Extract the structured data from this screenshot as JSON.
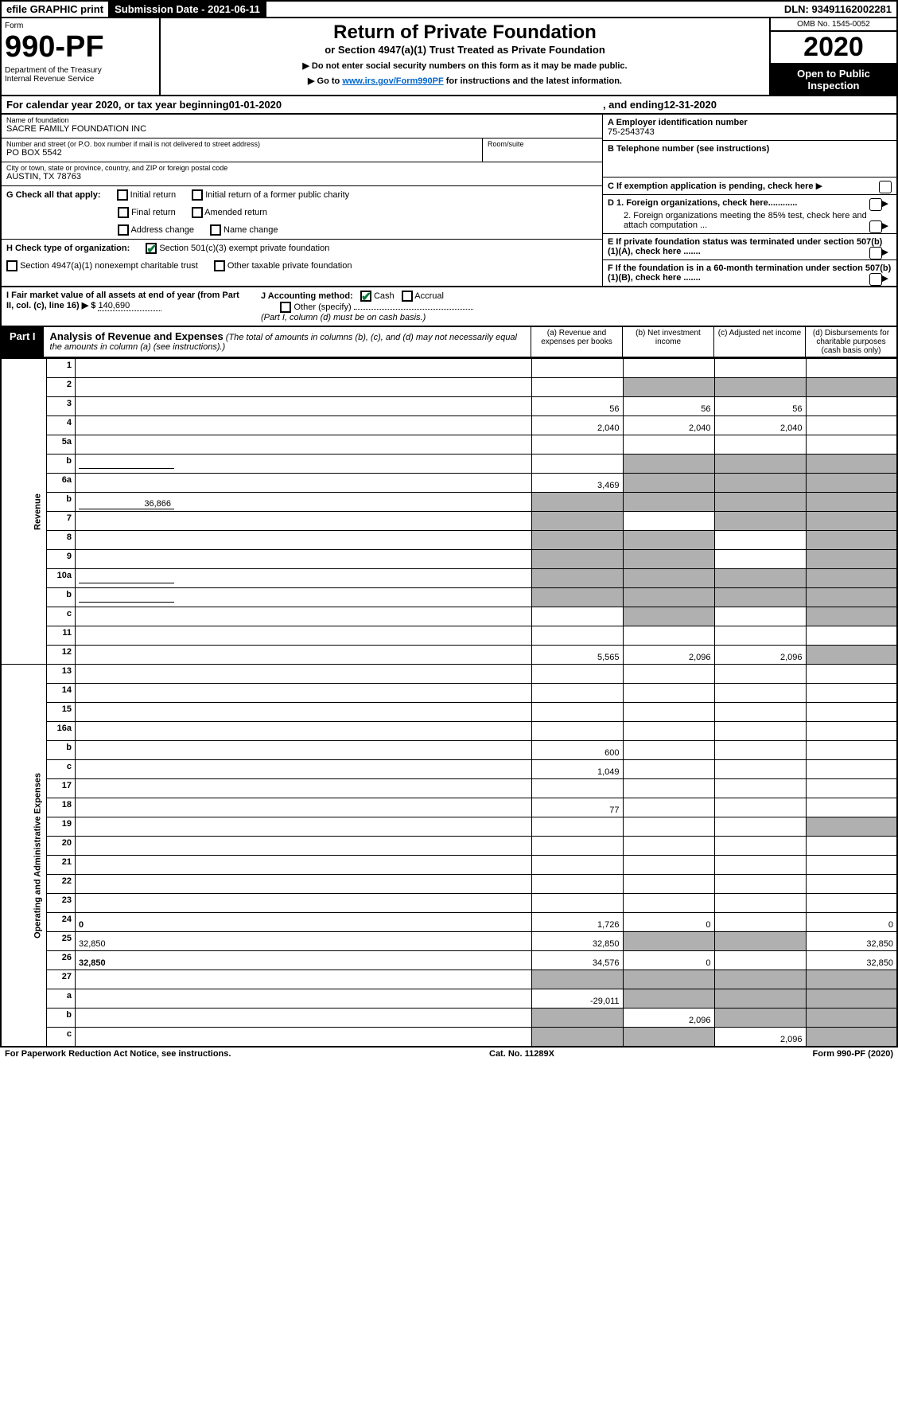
{
  "top": {
    "efile": "efile GRAPHIC print",
    "sub_date_label": "Submission Date - 2021-06-11",
    "dln": "DLN: 93491162002281"
  },
  "header": {
    "form_label": "Form",
    "form_num": "990-PF",
    "dept": "Department of the Treasury\nInternal Revenue Service",
    "title": "Return of Private Foundation",
    "subtitle": "or Section 4947(a)(1) Trust Treated as Private Foundation",
    "note1": "▶ Do not enter social security numbers on this form as it may be made public.",
    "note2_pre": "▶ Go to ",
    "note2_link": "www.irs.gov/Form990PF",
    "note2_post": " for instructions and the latest information.",
    "omb": "OMB No. 1545-0052",
    "year": "2020",
    "open": "Open to Public Inspection"
  },
  "cal": {
    "pre": "For calendar year 2020, or tax year beginning ",
    "begin": "01-01-2020",
    "mid": ", and ending ",
    "end": "12-31-2020"
  },
  "info": {
    "name_lbl": "Name of foundation",
    "name": "SACRE FAMILY FOUNDATION INC",
    "street_lbl": "Number and street (or P.O. box number if mail is not delivered to street address)",
    "street": "PO BOX 5542",
    "room_lbl": "Room/suite",
    "city_lbl": "City or town, state or province, country, and ZIP or foreign postal code",
    "city": "AUSTIN, TX  78763",
    "A_lbl": "A Employer identification number",
    "A": "75-2543743",
    "B_lbl": "B Telephone number (see instructions)",
    "C": "C If exemption application is pending, check here",
    "D1": "D 1. Foreign organizations, check here............",
    "D2": "2. Foreign organizations meeting the 85% test, check here and attach computation ...",
    "E": "E If private foundation status was terminated under section 507(b)(1)(A), check here .......",
    "F": "F If the foundation is in a 60-month termination under section 507(b)(1)(B), check here .......",
    "G_lbl": "G Check all that apply:",
    "G_opts": [
      "Initial return",
      "Initial return of a former public charity",
      "Final return",
      "Amended return",
      "Address change",
      "Name change"
    ],
    "H_lbl": "H Check type of organization:",
    "H1": "Section 501(c)(3) exempt private foundation",
    "H2": "Section 4947(a)(1) nonexempt charitable trust",
    "H3": "Other taxable private foundation",
    "I_lbl": "I Fair market value of all assets at end of year (from Part II, col. (c), line 16) ▶ $",
    "I_val": "140,690",
    "J_lbl": "J Accounting method:",
    "J_cash": "Cash",
    "J_accrual": "Accrual",
    "J_other": "Other (specify)",
    "J_note": "(Part I, column (d) must be on cash basis.)"
  },
  "part1": {
    "label": "Part I",
    "title": "Analysis of Revenue and Expenses",
    "desc": "(The total of amounts in columns (b), (c), and (d) may not necessarily equal the amounts in column (a) (see instructions).)",
    "col_a": "(a) Revenue and expenses per books",
    "col_b": "(b) Net investment income",
    "col_c": "(c) Adjusted net income",
    "col_d": "(d) Disbursements for charitable purposes (cash basis only)"
  },
  "sections": {
    "revenue": "Revenue",
    "expenses": "Operating and Administrative Expenses"
  },
  "rows": [
    {
      "n": "1",
      "d": "",
      "a": "",
      "b": "",
      "c": ""
    },
    {
      "n": "2",
      "d": "",
      "dots": true,
      "a": "",
      "b": "",
      "c": "",
      "b_shade": true,
      "c_shade": true,
      "d_shade": true
    },
    {
      "n": "3",
      "d": "",
      "a": "56",
      "b": "56",
      "c": "56"
    },
    {
      "n": "4",
      "d": "",
      "dots": true,
      "a": "2,040",
      "b": "2,040",
      "c": "2,040"
    },
    {
      "n": "5a",
      "d": "",
      "dots": true,
      "a": "",
      "b": "",
      "c": ""
    },
    {
      "n": "b",
      "d": "",
      "inline": "",
      "a": "",
      "b": "",
      "c": "",
      "b_shade": true,
      "c_shade": true,
      "d_shade": true
    },
    {
      "n": "6a",
      "d": "",
      "a": "3,469",
      "b": "",
      "c": "",
      "b_shade": true,
      "c_shade": true,
      "d_shade": true
    },
    {
      "n": "b",
      "d": "",
      "inline": "36,866",
      "a": "",
      "b": "",
      "c": "",
      "a_shade": true,
      "b_shade": true,
      "c_shade": true,
      "d_shade": true
    },
    {
      "n": "7",
      "d": "",
      "dots": true,
      "a": "",
      "b": "",
      "c": "",
      "a_shade": true,
      "c_shade": true,
      "d_shade": true
    },
    {
      "n": "8",
      "d": "",
      "dots": true,
      "a": "",
      "b": "",
      "c": "",
      "a_shade": true,
      "b_shade": true,
      "d_shade": true
    },
    {
      "n": "9",
      "d": "",
      "dots": true,
      "a": "",
      "b": "",
      "c": "",
      "a_shade": true,
      "b_shade": true,
      "d_shade": true
    },
    {
      "n": "10a",
      "d": "",
      "inline": "",
      "a": "",
      "b": "",
      "c": "",
      "a_shade": true,
      "b_shade": true,
      "c_shade": true,
      "d_shade": true
    },
    {
      "n": "b",
      "d": "",
      "dots": true,
      "inline": "",
      "a": "",
      "b": "",
      "c": "",
      "a_shade": true,
      "b_shade": true,
      "c_shade": true,
      "d_shade": true
    },
    {
      "n": "c",
      "d": "",
      "dots": true,
      "a": "",
      "b": "",
      "c": "",
      "b_shade": true,
      "d_shade": true
    },
    {
      "n": "11",
      "d": "",
      "dots": true,
      "a": "",
      "b": "",
      "c": ""
    },
    {
      "n": "12",
      "d": "",
      "dots": true,
      "bold": true,
      "a": "5,565",
      "b": "2,096",
      "c": "2,096",
      "d_shade": true
    }
  ],
  "exp_rows": [
    {
      "n": "13",
      "d": "",
      "a": "",
      "b": "",
      "c": ""
    },
    {
      "n": "14",
      "d": "",
      "dots": true,
      "a": "",
      "b": "",
      "c": ""
    },
    {
      "n": "15",
      "d": "",
      "dots": true,
      "a": "",
      "b": "",
      "c": ""
    },
    {
      "n": "16a",
      "d": "",
      "dots": true,
      "a": "",
      "b": "",
      "c": ""
    },
    {
      "n": "b",
      "d": "",
      "dots": true,
      "a": "600",
      "b": "",
      "c": ""
    },
    {
      "n": "c",
      "d": "",
      "dots": true,
      "a": "1,049",
      "b": "",
      "c": ""
    },
    {
      "n": "17",
      "d": "",
      "dots": true,
      "a": "",
      "b": "",
      "c": ""
    },
    {
      "n": "18",
      "d": "",
      "dots": true,
      "a": "77",
      "b": "",
      "c": ""
    },
    {
      "n": "19",
      "d": "",
      "dots": true,
      "a": "",
      "b": "",
      "c": "",
      "d_shade": true
    },
    {
      "n": "20",
      "d": "",
      "dots": true,
      "a": "",
      "b": "",
      "c": ""
    },
    {
      "n": "21",
      "d": "",
      "dots": true,
      "a": "",
      "b": "",
      "c": ""
    },
    {
      "n": "22",
      "d": "",
      "dots": true,
      "a": "",
      "b": "",
      "c": ""
    },
    {
      "n": "23",
      "d": "",
      "dots": true,
      "a": "",
      "b": "",
      "c": ""
    },
    {
      "n": "24",
      "d": "0",
      "dots": true,
      "bold": true,
      "a": "1,726",
      "b": "0",
      "c": ""
    },
    {
      "n": "25",
      "d": "32,850",
      "dots": true,
      "a": "32,850",
      "b": "",
      "c": "",
      "b_shade": true,
      "c_shade": true
    },
    {
      "n": "26",
      "d": "32,850",
      "bold": true,
      "a": "34,576",
      "b": "0",
      "c": ""
    },
    {
      "n": "27",
      "d": "",
      "a": "",
      "b": "",
      "c": "",
      "a_shade": true,
      "b_shade": true,
      "c_shade": true,
      "d_shade": true
    },
    {
      "n": "a",
      "d": "",
      "bold": true,
      "a": "-29,011",
      "b": "",
      "c": "",
      "b_shade": true,
      "c_shade": true,
      "d_shade": true
    },
    {
      "n": "b",
      "d": "",
      "bold": true,
      "a": "",
      "b": "2,096",
      "c": "",
      "a_shade": true,
      "c_shade": true,
      "d_shade": true
    },
    {
      "n": "c",
      "d": "",
      "dots": true,
      "bold": true,
      "a": "",
      "b": "",
      "c": "2,096",
      "a_shade": true,
      "b_shade": true,
      "d_shade": true
    }
  ],
  "footer": {
    "left": "For Paperwork Reduction Act Notice, see instructions.",
    "mid": "Cat. No. 11289X",
    "right": "Form 990-PF (2020)"
  }
}
